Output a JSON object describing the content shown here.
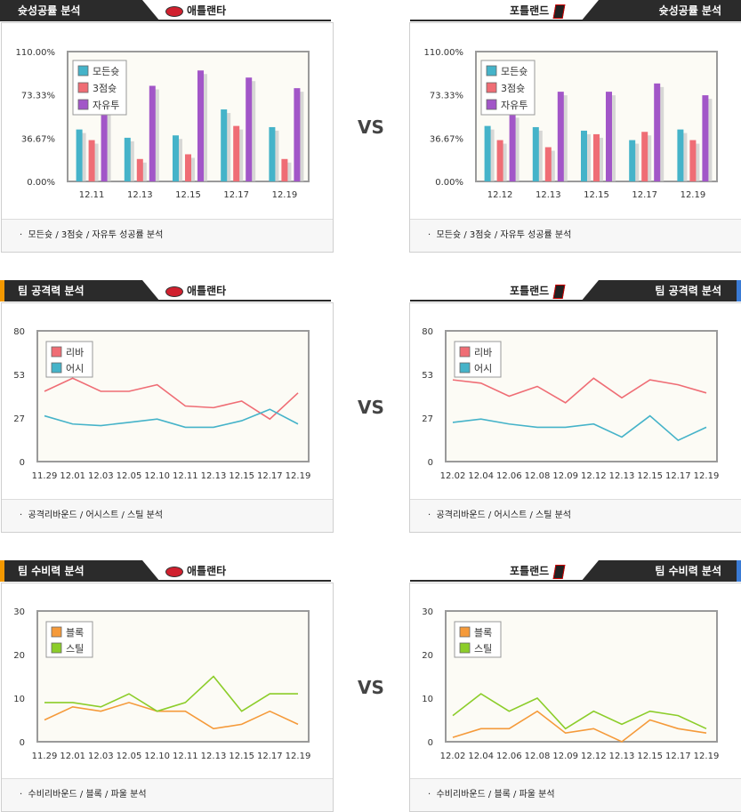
{
  "sections": [
    {
      "header": {
        "title": "슛성공률 분석",
        "accent": "#2b2b2b",
        "left_team": "애틀랜타",
        "right_team": "포틀랜드"
      },
      "footer_text": "모든슛 / 3점슛 / 자유투 성공률 분석"
    },
    {
      "header": {
        "title": "팀 공격력 분석",
        "accent": "#f39800",
        "accent_right": "#3a7bd5",
        "left_team": "애틀랜타",
        "right_team": "포틀랜드"
      },
      "footer_text": "공격리바운드 / 어시스트 / 스틸 분석"
    },
    {
      "header": {
        "title": "팀 수비력 분석",
        "accent": "#f39800",
        "accent_right": "#3a7bd5",
        "left_team": "애틀랜타",
        "right_team": "포틀랜드"
      },
      "footer_text": "수비리바운드 / 블록 / 파울 분석"
    }
  ],
  "vs_label": "VS",
  "colors": {
    "teal": "#45b3c9",
    "red": "#ef6d75",
    "purple": "#a256c8",
    "orange": "#f59a3a",
    "green": "#8ccd2a"
  },
  "chart_data": [
    {
      "id": "atl-shooting",
      "type": "bar",
      "categories": [
        "12.11",
        "12.13",
        "12.15",
        "12.17",
        "12.19"
      ],
      "yticks": [
        "0.00%",
        "36.67%",
        "73.33%",
        "110.00%"
      ],
      "ylim": [
        0,
        110
      ],
      "series": [
        {
          "name": "모든슛",
          "color": "#45b3c9",
          "values": [
            44,
            37,
            39,
            61,
            46
          ]
        },
        {
          "name": "3점슛",
          "color": "#ef6d75",
          "values": [
            35,
            19,
            23,
            47,
            19
          ]
        },
        {
          "name": "자유투",
          "color": "#a256c8",
          "values": [
            80,
            81,
            94,
            88,
            79
          ]
        }
      ],
      "legend": "top-left",
      "grid": false
    },
    {
      "id": "por-shooting",
      "type": "bar",
      "categories": [
        "12.12",
        "12.13",
        "12.15",
        "12.17",
        "12.19"
      ],
      "yticks": [
        "0.00%",
        "36.67%",
        "73.33%",
        "110.00%"
      ],
      "ylim": [
        0,
        110
      ],
      "series": [
        {
          "name": "모든슛",
          "color": "#45b3c9",
          "values": [
            47,
            46,
            43,
            35,
            44
          ]
        },
        {
          "name": "3점슛",
          "color": "#ef6d75",
          "values": [
            35,
            29,
            40,
            42,
            35
          ]
        },
        {
          "name": "자유투",
          "color": "#a256c8",
          "values": [
            57,
            76,
            76,
            83,
            73
          ]
        }
      ],
      "legend": "top-left",
      "grid": false
    },
    {
      "id": "atl-offense",
      "type": "line",
      "categories": [
        "11.29",
        "12.01",
        "12.03",
        "12.05",
        "12.10",
        "12.11",
        "12.13",
        "12.15",
        "12.17",
        "12.19"
      ],
      "yticks": [
        "0",
        "27",
        "53",
        "80"
      ],
      "ylim": [
        0,
        80
      ],
      "series": [
        {
          "name": "리바",
          "color": "#ef6d75",
          "values": [
            43,
            51,
            43,
            43,
            47,
            34,
            33,
            37,
            26,
            42
          ]
        },
        {
          "name": "어시",
          "color": "#45b3c9",
          "values": [
            28,
            23,
            22,
            24,
            26,
            21,
            21,
            25,
            32,
            23
          ]
        }
      ],
      "legend": "top-left",
      "grid": false
    },
    {
      "id": "por-offense",
      "type": "line",
      "categories": [
        "12.02",
        "12.04",
        "12.06",
        "12.08",
        "12.09",
        "12.12",
        "12.13",
        "12.15",
        "12.17",
        "12.19"
      ],
      "yticks": [
        "0",
        "27",
        "53",
        "80"
      ],
      "ylim": [
        0,
        80
      ],
      "series": [
        {
          "name": "리바",
          "color": "#ef6d75",
          "values": [
            50,
            48,
            40,
            46,
            36,
            51,
            39,
            50,
            47,
            42
          ]
        },
        {
          "name": "어시",
          "color": "#45b3c9",
          "values": [
            24,
            26,
            23,
            21,
            21,
            23,
            15,
            28,
            13,
            21
          ]
        }
      ],
      "legend": "top-left",
      "grid": false
    },
    {
      "id": "atl-defense",
      "type": "line",
      "categories": [
        "11.29",
        "12.01",
        "12.03",
        "12.05",
        "12.10",
        "12.11",
        "12.13",
        "12.15",
        "12.17",
        "12.19"
      ],
      "yticks": [
        "0",
        "10",
        "20",
        "30"
      ],
      "ylim": [
        0,
        30
      ],
      "series": [
        {
          "name": "블록",
          "color": "#f59a3a",
          "values": [
            5,
            8,
            7,
            9,
            7,
            7,
            3,
            4,
            7,
            4
          ]
        },
        {
          "name": "스틸",
          "color": "#8ccd2a",
          "values": [
            9,
            9,
            8,
            11,
            7,
            9,
            15,
            7,
            11,
            11
          ]
        }
      ],
      "legend": "top-left",
      "grid": false
    },
    {
      "id": "por-defense",
      "type": "line",
      "categories": [
        "12.02",
        "12.04",
        "12.06",
        "12.08",
        "12.09",
        "12.12",
        "12.13",
        "12.15",
        "12.17",
        "12.19"
      ],
      "yticks": [
        "0",
        "10",
        "20",
        "30"
      ],
      "ylim": [
        0,
        30
      ],
      "series": [
        {
          "name": "블록",
          "color": "#f59a3a",
          "values": [
            1,
            3,
            3,
            7,
            2,
            3,
            0,
            5,
            3,
            2
          ]
        },
        {
          "name": "스틸",
          "color": "#8ccd2a",
          "values": [
            6,
            11,
            7,
            10,
            3,
            7,
            4,
            7,
            6,
            3
          ]
        }
      ],
      "legend": "top-left",
      "grid": false
    }
  ]
}
